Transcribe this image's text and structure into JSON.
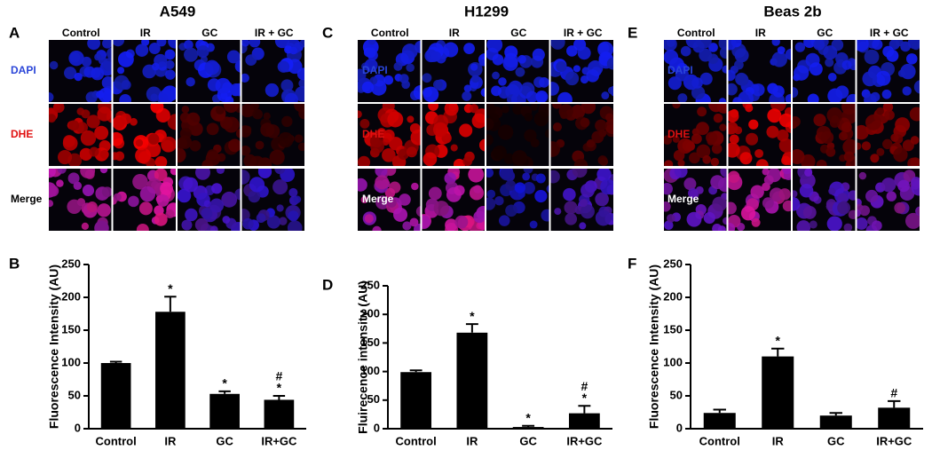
{
  "panels": [
    {
      "letter": "A",
      "title": "A549",
      "columns": [
        "Control",
        "IR",
        "GC",
        "IR + GC"
      ],
      "rows": [
        "DAPI",
        "DHE",
        "Merge"
      ]
    },
    {
      "letter": "C",
      "title": "H1299",
      "columns": [
        "Control",
        "IR",
        "GC",
        "IR + GC"
      ],
      "rows": [
        "DAPI",
        "DHE",
        "Merge"
      ]
    },
    {
      "letter": "E",
      "title": "Beas 2b",
      "columns": [
        "Control",
        "IR",
        "GC",
        "IR + GC"
      ],
      "rows": [
        "DAPI",
        "DHE",
        "Merge"
      ]
    }
  ],
  "chart_data": [
    {
      "type": "bar",
      "panel_label": "B",
      "ylabel": "Fluorescence Intensity (AU)",
      "categories": [
        "Control",
        "IR",
        "GC",
        "IR+GC"
      ],
      "values": [
        100,
        178,
        53,
        44
      ],
      "errors": [
        2,
        23,
        4,
        6
      ],
      "annotations": [
        null,
        [
          "*"
        ],
        [
          "*"
        ],
        [
          "#",
          "*"
        ]
      ],
      "color": "#000000",
      "ylim": [
        0,
        250
      ],
      "yticks": [
        0,
        50,
        100,
        150,
        200,
        250
      ]
    },
    {
      "type": "bar",
      "panel_label": "D",
      "ylabel": "Fluirecence intensity (AU)",
      "categories": [
        "Control",
        "IR",
        "GC",
        "IR+GC"
      ],
      "values": [
        99,
        168,
        3,
        27
      ],
      "errors": [
        3,
        15,
        2,
        13
      ],
      "annotations": [
        null,
        [
          "*"
        ],
        [
          "*"
        ],
        [
          "#",
          "*"
        ]
      ],
      "color": "#000000",
      "ylim": [
        0,
        250
      ],
      "yticks": [
        0,
        50,
        100,
        150,
        200,
        250
      ]
    },
    {
      "type": "bar",
      "panel_label": "F",
      "ylabel": "Fluorescence Intensity (AU)",
      "categories": [
        "Control",
        "IR",
        "GC",
        "IR+GC"
      ],
      "values": [
        24,
        110,
        20,
        32
      ],
      "errors": [
        5,
        12,
        4,
        10
      ],
      "annotations": [
        null,
        [
          "*"
        ],
        null,
        [
          "#"
        ]
      ],
      "color": "#000000",
      "ylim": [
        0,
        250
      ],
      "yticks": [
        0,
        50,
        100,
        150,
        200,
        250
      ]
    }
  ]
}
